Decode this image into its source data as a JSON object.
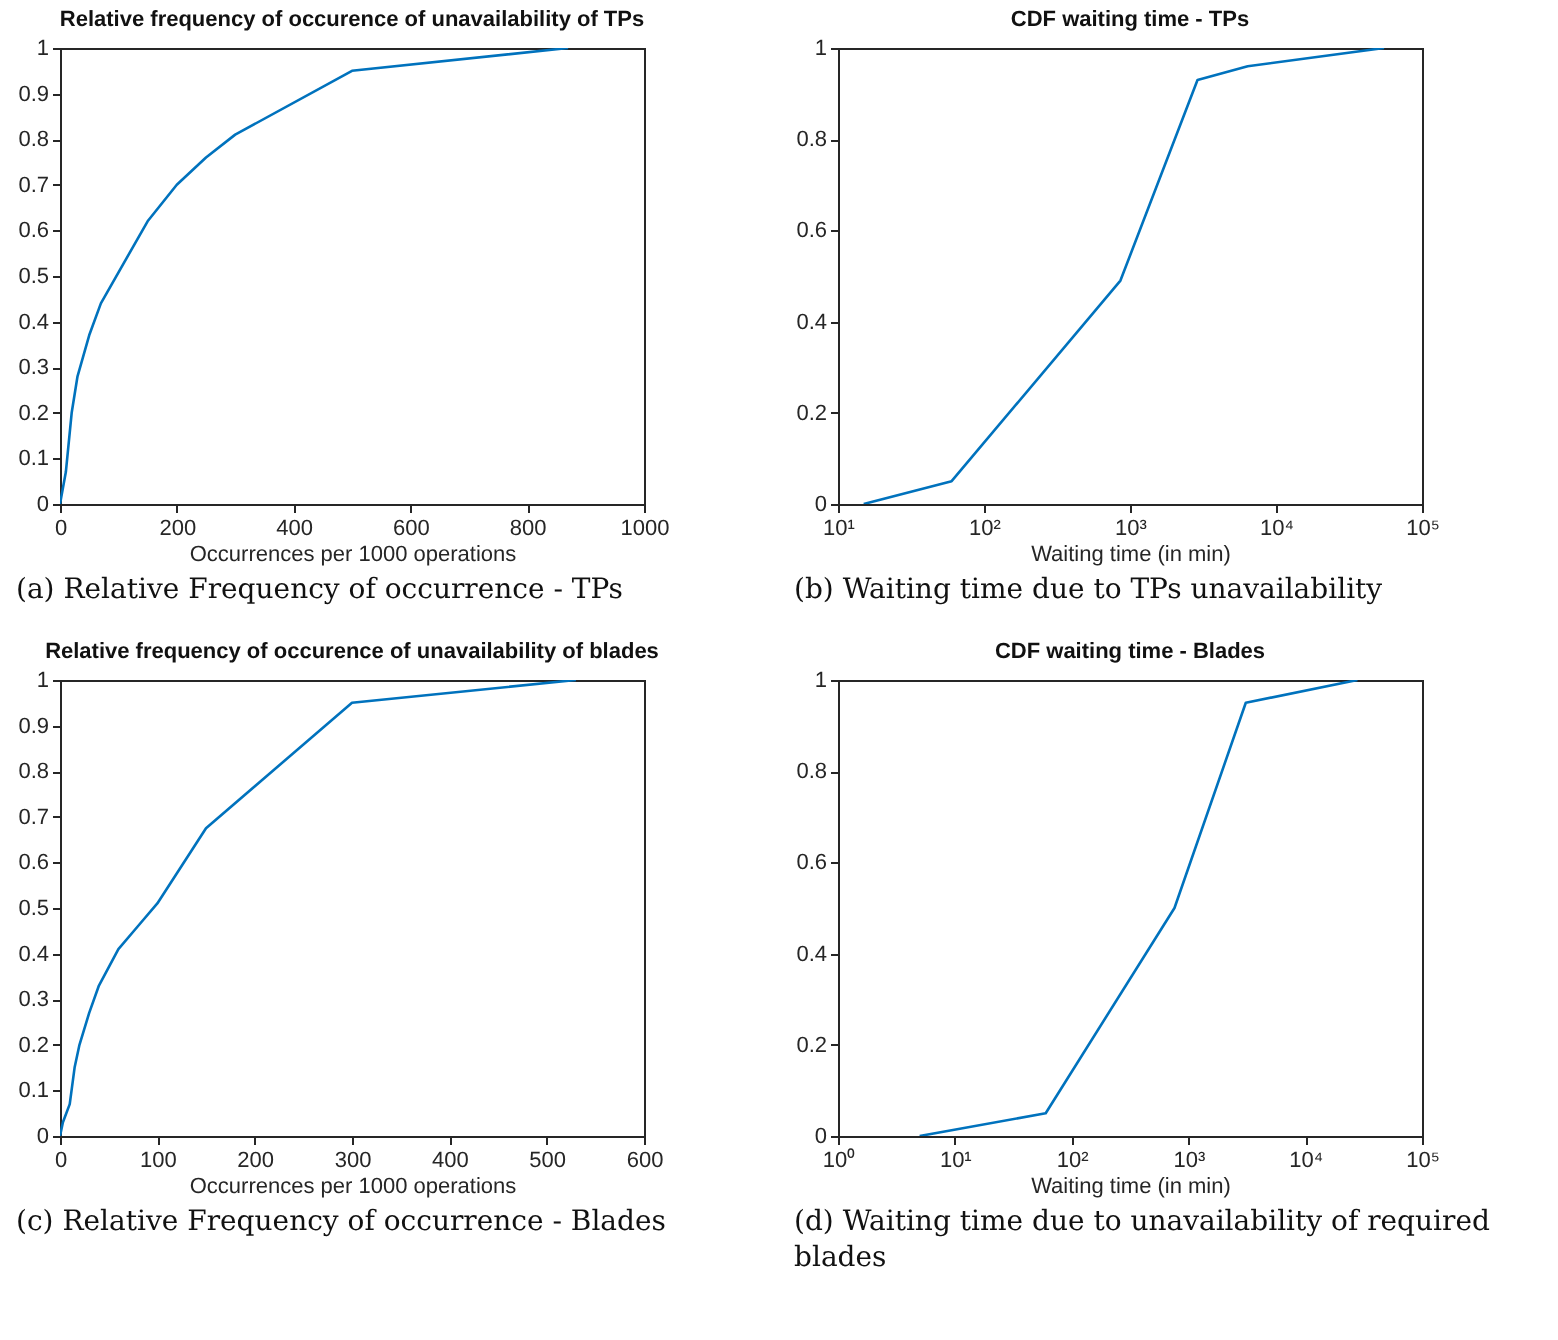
{
  "chart_data": [
    {
      "type": "line",
      "title": "Relative frequency of occurence of unavailability of TPs",
      "xlabel": "Occurrences per 1000 operations",
      "x": [
        0,
        10,
        20,
        30,
        50,
        70,
        150,
        200,
        250,
        300,
        500,
        870
      ],
      "series": [
        {
          "color": "#0072bd",
          "values": [
            0,
            0.07,
            0.2,
            0.28,
            0.37,
            0.44,
            0.62,
            0.7,
            0.76,
            0.81,
            0.95,
            1
          ]
        }
      ],
      "xlim": [
        0,
        1000
      ],
      "xticks": [
        0,
        200,
        400,
        600,
        800,
        1000
      ],
      "ylim": [
        0,
        1
      ],
      "yticks": [
        0,
        0.1,
        0.2,
        0.3,
        0.4,
        0.5,
        0.6,
        0.7,
        0.8,
        0.9,
        1
      ],
      "annotations": [
        "(a) Relative Frequency of occurrence - TPs"
      ]
    },
    {
      "type": "line",
      "title": "CDF waiting time - TPs",
      "xlabel": "Waiting time (in min)",
      "x": [
        15,
        60,
        860,
        2900,
        6400,
        55000
      ],
      "series": [
        {
          "color": "#0072bd",
          "values": [
            0,
            0.05,
            0.49,
            0.93,
            0.96,
            1
          ]
        }
      ],
      "log": "x",
      "xlim": [
        10,
        100000
      ],
      "xticks": [
        {
          "value": 10,
          "label": "10¹"
        },
        {
          "value": 100,
          "label": "10²"
        },
        {
          "value": 1000,
          "label": "10³"
        },
        {
          "value": 10000,
          "label": "10⁴"
        },
        {
          "value": 100000,
          "label": "10⁵"
        }
      ],
      "ylim": [
        0,
        1
      ],
      "yticks": [
        0,
        0.2,
        0.4,
        0.6,
        0.8,
        1
      ],
      "annotations": [
        "(b) Waiting time due to TPs unavailability"
      ]
    },
    {
      "type": "line",
      "title": "Relative frequency of occurence of unavailability of blades",
      "xlabel": "Occurrences per 1000 operations",
      "x": [
        0,
        3,
        10,
        15,
        20,
        30,
        40,
        60,
        80,
        100,
        150,
        300,
        530
      ],
      "series": [
        {
          "color": "#0072bd",
          "values": [
            0,
            0.03,
            0.07,
            0.15,
            0.2,
            0.27,
            0.33,
            0.41,
            0.46,
            0.51,
            0.675,
            0.95,
            1
          ]
        }
      ],
      "xlim": [
        0,
        600
      ],
      "xticks": [
        0,
        100,
        200,
        300,
        400,
        500,
        600
      ],
      "ylim": [
        0,
        1
      ],
      "yticks": [
        0,
        0.1,
        0.2,
        0.3,
        0.4,
        0.5,
        0.6,
        0.7,
        0.8,
        0.9,
        1
      ],
      "annotations": [
        "(c) Relative Frequency of occurrence - Blades"
      ]
    },
    {
      "type": "line",
      "title": "CDF waiting time - Blades",
      "xlabel": "Waiting time (in min)",
      "x": [
        5,
        60,
        760,
        3100,
        28000
      ],
      "series": [
        {
          "color": "#0072bd",
          "values": [
            0,
            0.05,
            0.5,
            0.95,
            1
          ]
        }
      ],
      "log": "x",
      "xlim": [
        1,
        100000
      ],
      "xticks": [
        {
          "value": 1,
          "label": "10⁰"
        },
        {
          "value": 10,
          "label": "10¹"
        },
        {
          "value": 100,
          "label": "10²"
        },
        {
          "value": 1000,
          "label": "10³"
        },
        {
          "value": 10000,
          "label": "10⁴"
        },
        {
          "value": 100000,
          "label": "10⁵"
        }
      ],
      "ylim": [
        0,
        1
      ],
      "yticks": [
        0,
        0.2,
        0.4,
        0.6,
        0.8,
        1
      ],
      "annotations": [
        "(d) Waiting time due to unavailability of required blades"
      ]
    }
  ]
}
